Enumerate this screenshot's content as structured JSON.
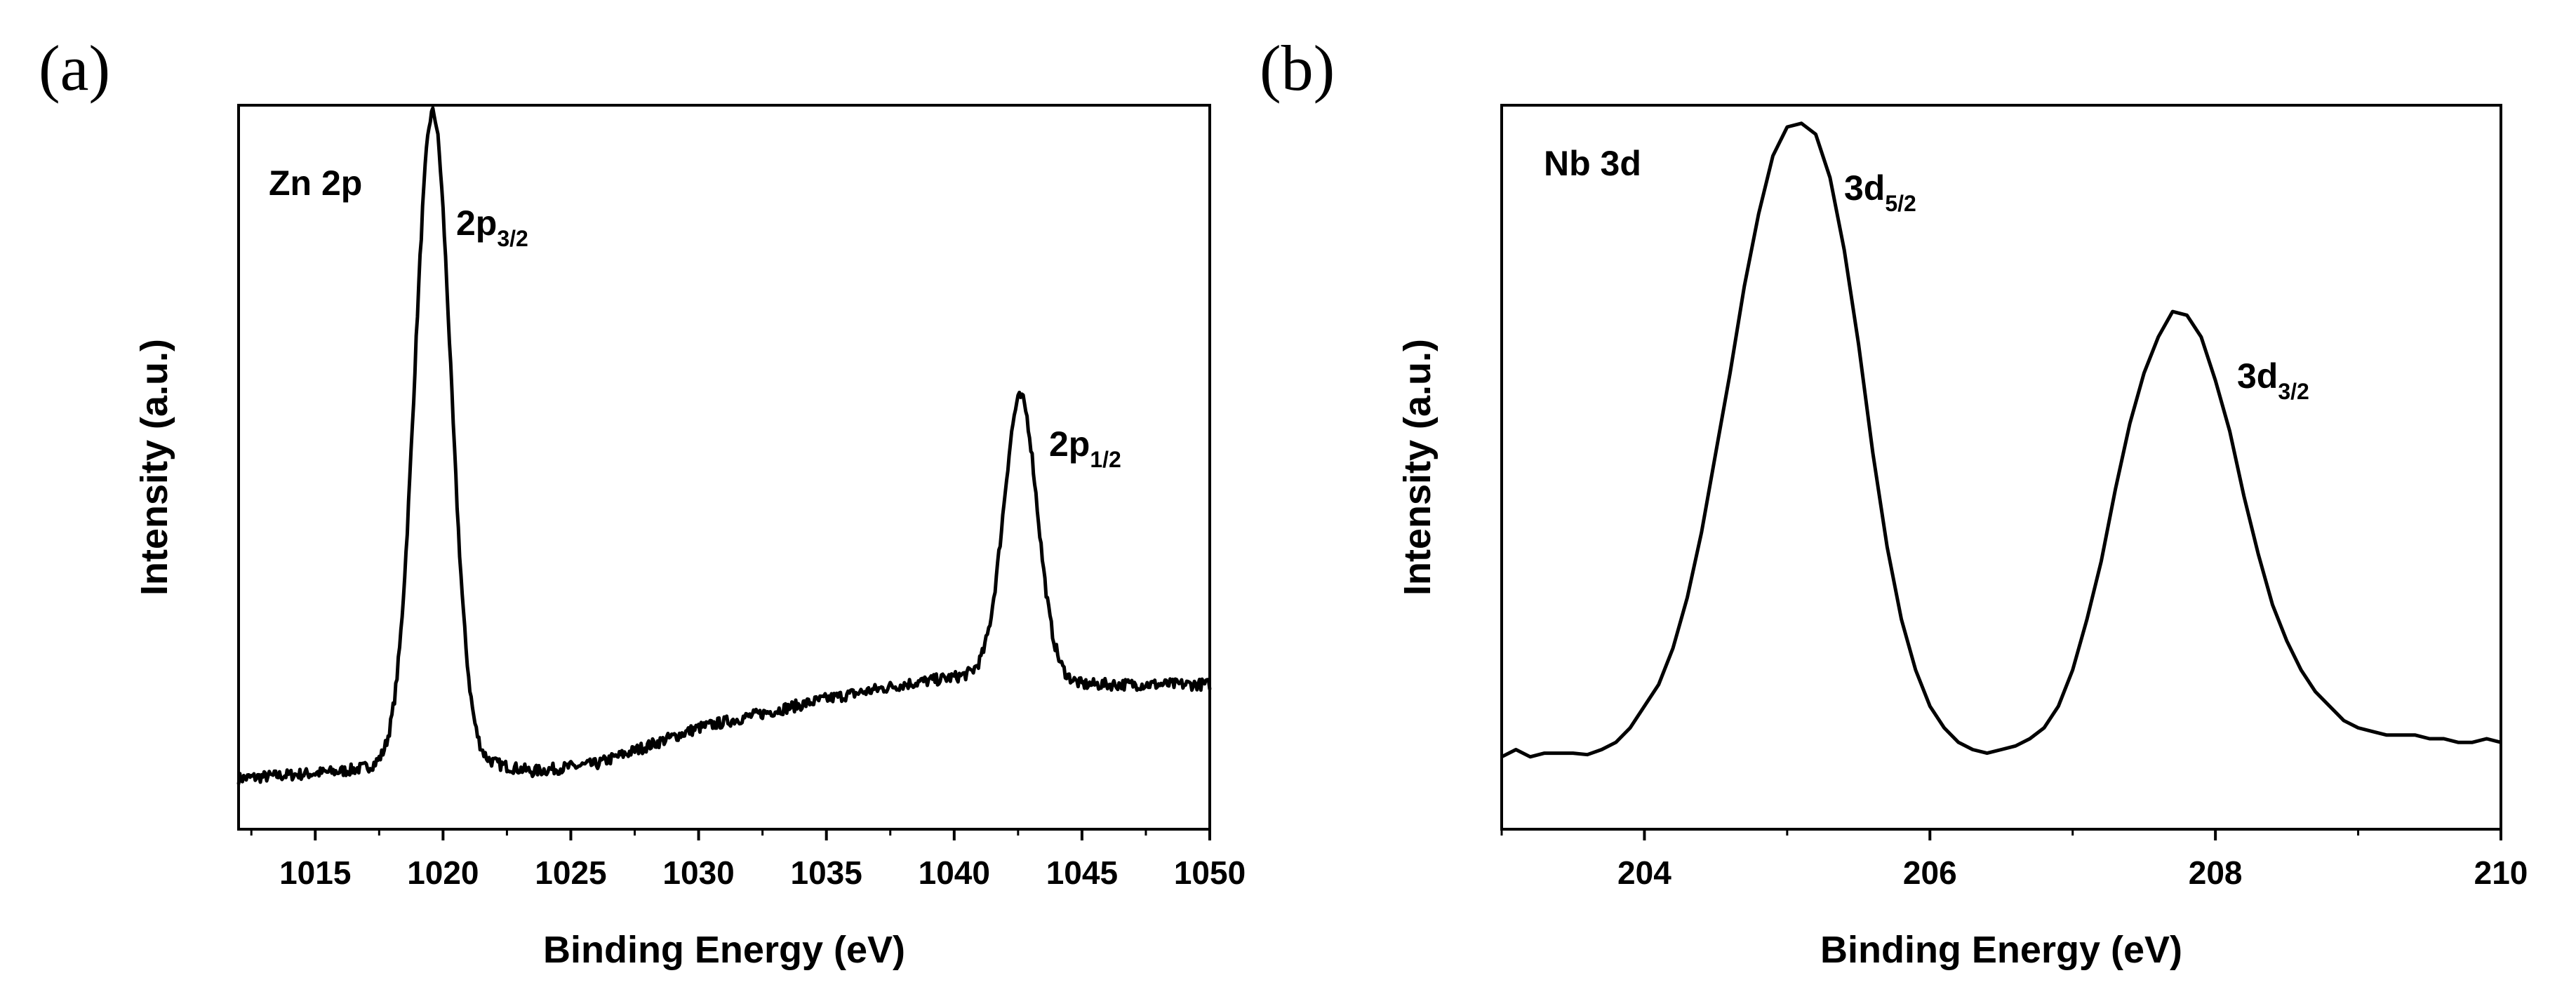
{
  "chart_data": [
    {
      "type": "line",
      "panel_label": "(a)",
      "title": "Zn 2p",
      "xlabel": "Binding Energy (eV)",
      "ylabel": "Intensity (a.u.)",
      "xlim": [
        1012,
        1050
      ],
      "ylim": [
        0,
        100
      ],
      "xticks": [
        1015,
        1020,
        1025,
        1030,
        1035,
        1040,
        1045,
        1050
      ],
      "xtick_labels": [
        "1015",
        "1020",
        "1025",
        "1030",
        "1035",
        "1040",
        "1045",
        "1050"
      ],
      "yticks_shown": false,
      "baseline": [
        [
          1012,
          7
        ],
        [
          1016,
          8
        ],
        [
          1018,
          9
        ],
        [
          1022,
          9
        ],
        [
          1023.5,
          8
        ],
        [
          1026,
          9
        ],
        [
          1030,
          14
        ],
        [
          1035,
          18
        ],
        [
          1038,
          20
        ],
        [
          1040,
          21
        ],
        [
          1042,
          22
        ],
        [
          1044,
          21
        ],
        [
          1045,
          20
        ],
        [
          1050,
          20
        ]
      ],
      "peaks": [
        {
          "center": 1019.6,
          "height": 90,
          "width": 0.7,
          "label_main": "2p",
          "label_sub": "3/2"
        },
        {
          "center": 1042.6,
          "height": 38,
          "width": 0.65,
          "label_main": "2p",
          "label_sub": "1/2"
        }
      ]
    },
    {
      "type": "line",
      "panel_label": "(b)",
      "title": "Nb 3d",
      "xlabel": "Binding Energy (eV)",
      "ylabel": "Intensity (a.u.)",
      "xlim": [
        203,
        210
      ],
      "ylim": [
        0,
        100
      ],
      "xticks": [
        204,
        206,
        208,
        210
      ],
      "xtick_labels": [
        "204",
        "206",
        "208",
        "210"
      ],
      "yticks_shown": false,
      "points": [
        [
          203.0,
          10.0
        ],
        [
          203.1,
          11.0
        ],
        [
          203.2,
          10.0
        ],
        [
          203.3,
          10.5
        ],
        [
          203.4,
          10.5
        ],
        [
          203.5,
          10.5
        ],
        [
          203.6,
          10.3
        ],
        [
          203.7,
          11.0
        ],
        [
          203.8,
          12.0
        ],
        [
          203.9,
          14.0
        ],
        [
          204.0,
          17.0
        ],
        [
          204.1,
          20.0
        ],
        [
          204.2,
          25.0
        ],
        [
          204.3,
          32.0
        ],
        [
          204.4,
          41.0
        ],
        [
          204.5,
          52.0
        ],
        [
          204.6,
          63.0
        ],
        [
          204.7,
          75.0
        ],
        [
          204.8,
          85.0
        ],
        [
          204.9,
          93.0
        ],
        [
          205.0,
          97.0
        ],
        [
          205.1,
          97.5
        ],
        [
          205.2,
          96.0
        ],
        [
          205.3,
          90.0
        ],
        [
          205.4,
          80.0
        ],
        [
          205.5,
          67.0
        ],
        [
          205.6,
          52.0
        ],
        [
          205.7,
          39.0
        ],
        [
          205.8,
          29.0
        ],
        [
          205.9,
          22.0
        ],
        [
          206.0,
          17.0
        ],
        [
          206.1,
          14.0
        ],
        [
          206.2,
          12.0
        ],
        [
          206.3,
          11.0
        ],
        [
          206.4,
          10.5
        ],
        [
          206.5,
          11.0
        ],
        [
          206.6,
          11.5
        ],
        [
          206.7,
          12.5
        ],
        [
          206.8,
          14.0
        ],
        [
          206.9,
          17.0
        ],
        [
          207.0,
          22.0
        ],
        [
          207.1,
          29.0
        ],
        [
          207.2,
          37.0
        ],
        [
          207.3,
          47.0
        ],
        [
          207.4,
          56.0
        ],
        [
          207.5,
          63.0
        ],
        [
          207.6,
          68.0
        ],
        [
          207.7,
          71.5
        ],
        [
          207.8,
          71.0
        ],
        [
          207.9,
          68.0
        ],
        [
          208.0,
          62.0
        ],
        [
          208.1,
          55.0
        ],
        [
          208.2,
          46.0
        ],
        [
          208.3,
          38.0
        ],
        [
          208.4,
          31.0
        ],
        [
          208.5,
          26.0
        ],
        [
          208.6,
          22.0
        ],
        [
          208.7,
          19.0
        ],
        [
          208.8,
          17.0
        ],
        [
          208.9,
          15.0
        ],
        [
          209.0,
          14.0
        ],
        [
          209.1,
          13.5
        ],
        [
          209.2,
          13.0
        ],
        [
          209.3,
          13.0
        ],
        [
          209.4,
          13.0
        ],
        [
          209.5,
          12.5
        ],
        [
          209.6,
          12.5
        ],
        [
          209.7,
          12.0
        ],
        [
          209.8,
          12.0
        ],
        [
          209.9,
          12.5
        ],
        [
          210.0,
          12.0
        ]
      ],
      "peaks": [
        {
          "center": 205.1,
          "label_main": "3d",
          "label_sub": "5/2"
        },
        {
          "center": 207.75,
          "label_main": "3d",
          "label_sub": "3/2"
        }
      ]
    }
  ]
}
